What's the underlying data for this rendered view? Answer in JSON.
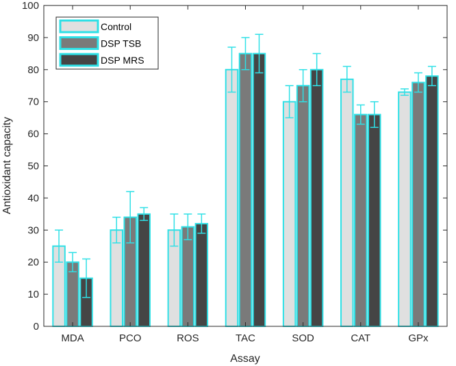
{
  "chart_data": {
    "type": "bar",
    "title": "",
    "xlabel": "Assay",
    "ylabel": "Antioxidant capacity",
    "ylim": [
      0,
      100
    ],
    "yticks": [
      0,
      10,
      20,
      30,
      40,
      50,
      60,
      70,
      80,
      90,
      100
    ],
    "categories": [
      "MDA",
      "PCO",
      "ROS",
      "TAC",
      "SOD",
      "CAT",
      "GPx"
    ],
    "series": [
      {
        "name": "Control",
        "values": [
          25,
          30,
          30,
          80,
          70,
          77,
          73
        ],
        "errors": [
          5,
          4,
          5,
          7,
          5,
          4,
          1
        ],
        "color": "#e0e0e0"
      },
      {
        "name": "DSP TSB",
        "values": [
          20,
          34,
          31,
          85,
          75,
          66,
          76
        ],
        "errors": [
          3,
          8,
          4,
          5,
          5,
          3,
          3
        ],
        "color": "#7a7a7a"
      },
      {
        "name": "DSP MRS",
        "values": [
          15,
          35,
          32,
          85,
          80,
          66,
          78
        ],
        "errors": [
          6,
          2,
          3,
          6,
          5,
          4,
          3
        ],
        "color": "#454545"
      }
    ],
    "edge_color": "#2ee0e6",
    "legend_position": "top-left",
    "grid": false
  }
}
